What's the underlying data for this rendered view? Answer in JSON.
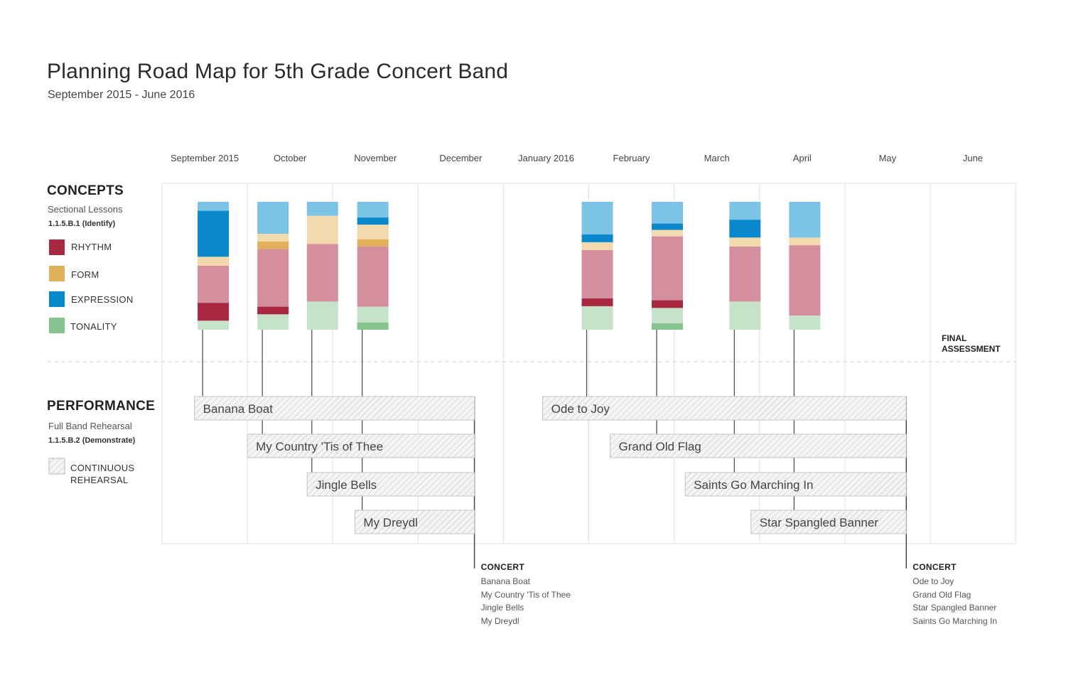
{
  "header": {
    "title": "Planning Road Map for 5th Grade Concert Band",
    "subtitle": "September 2015 - June 2016"
  },
  "months": [
    "September 2015",
    "October",
    "November",
    "December",
    "January 2016",
    "February",
    "March",
    "April",
    "May",
    "June"
  ],
  "concepts": {
    "title": "CONCEPTS",
    "subtitle": "Sectional Lessons",
    "code": "1.1.5.B.1 (Identify)",
    "legend": [
      {
        "label": "RHYTHM",
        "color": "#a8293f"
      },
      {
        "label": "FORM",
        "color": "#e2b05a"
      },
      {
        "label": "EXPRESSION",
        "color": "#0a88cc"
      },
      {
        "label": "TONALITY",
        "color": "#86c48e"
      }
    ]
  },
  "performance": {
    "title": "PERFORMANCE",
    "subtitle": "Full Band Rehearsal",
    "code": "1.1.5.B.2 (Demonstrate)",
    "legend_label": "CONTINUOUS REHEARSAL"
  },
  "final_assessment": "FINAL ASSESSMENT",
  "colors": {
    "rhythm_dark": "#a8293f",
    "rhythm_light": "#d48f9e",
    "form_dark": "#e2b05a",
    "form_light": "#f2d9ae",
    "expression_dark": "#0a88cc",
    "expression_light": "#7cc4e6",
    "tonality_dark": "#86c48e",
    "tonality_light": "#c6e2c8"
  },
  "stack_order": [
    "expression_light",
    "expression_dark",
    "form_light",
    "form_dark",
    "rhythm_light",
    "rhythm_dark",
    "tonality_light",
    "tonality_dark"
  ],
  "concept_bars": [
    {
      "month": 0.6,
      "expression_light": 7,
      "expression_dark": 36,
      "form_light": 7,
      "rhythm_light": 29,
      "rhythm_dark": 14,
      "tonality_light": 7
    },
    {
      "month": 1.3,
      "expression_light": 25,
      "form_light": 6,
      "form_dark": 6,
      "rhythm_light": 45,
      "rhythm_dark": 6,
      "tonality_light": 12
    },
    {
      "month": 1.88,
      "expression_light": 11,
      "form_light": 22,
      "rhythm_light": 45,
      "tonality_light": 22
    },
    {
      "month": 2.47,
      "expression_light": 13,
      "expression_dark": 6,
      "form_light": 12,
      "form_dark": 6,
      "rhythm_light": 50,
      "tonality_light": 13,
      "tonality_dark": 6
    },
    {
      "month": 5.1,
      "expression_light": 25,
      "expression_dark": 6,
      "form_light": 6,
      "rhythm_light": 37,
      "rhythm_dark": 6,
      "tonality_light": 18
    },
    {
      "month": 5.92,
      "expression_light": 17,
      "expression_dark": 5,
      "form_light": 5,
      "rhythm_light": 50,
      "rhythm_dark": 6,
      "tonality_light": 12,
      "tonality_dark": 5
    },
    {
      "month": 6.83,
      "expression_light": 14,
      "expression_dark": 14,
      "form_light": 7,
      "rhythm_light": 43,
      "tonality_light": 22
    },
    {
      "month": 7.53,
      "expression_light": 28,
      "form_light": 6,
      "rhythm_light": 55,
      "tonality_light": 11
    }
  ],
  "rehearsals": [
    {
      "label": "Banana Boat",
      "start": 0.38,
      "end": 3.66
    },
    {
      "label": "My Country 'Tis of Thee",
      "start": 1.0,
      "end": 3.66
    },
    {
      "label": "Jingle Bells",
      "start": 1.7,
      "end": 3.66
    },
    {
      "label": "My Dreydl",
      "start": 2.26,
      "end": 3.66
    },
    {
      "label": "Ode to Joy",
      "start": 4.46,
      "end": 8.72
    },
    {
      "label": "Grand Old Flag",
      "start": 5.25,
      "end": 8.72
    },
    {
      "label": "Saints Go Marching In",
      "start": 6.13,
      "end": 8.72
    },
    {
      "label": "Star Spangled Banner",
      "start": 6.9,
      "end": 8.72
    }
  ],
  "concerts": [
    {
      "title": "CONCERT",
      "month": 3.66,
      "songs": [
        "Banana Boat",
        "My Country 'Tis of Thee",
        "Jingle Bells",
        "My Dreydl"
      ]
    },
    {
      "title": "CONCERT",
      "month": 8.72,
      "songs": [
        "Ode to Joy",
        "Grand Old Flag",
        "Star Spangled Banner",
        "Saints Go Marching In"
      ]
    }
  ]
}
